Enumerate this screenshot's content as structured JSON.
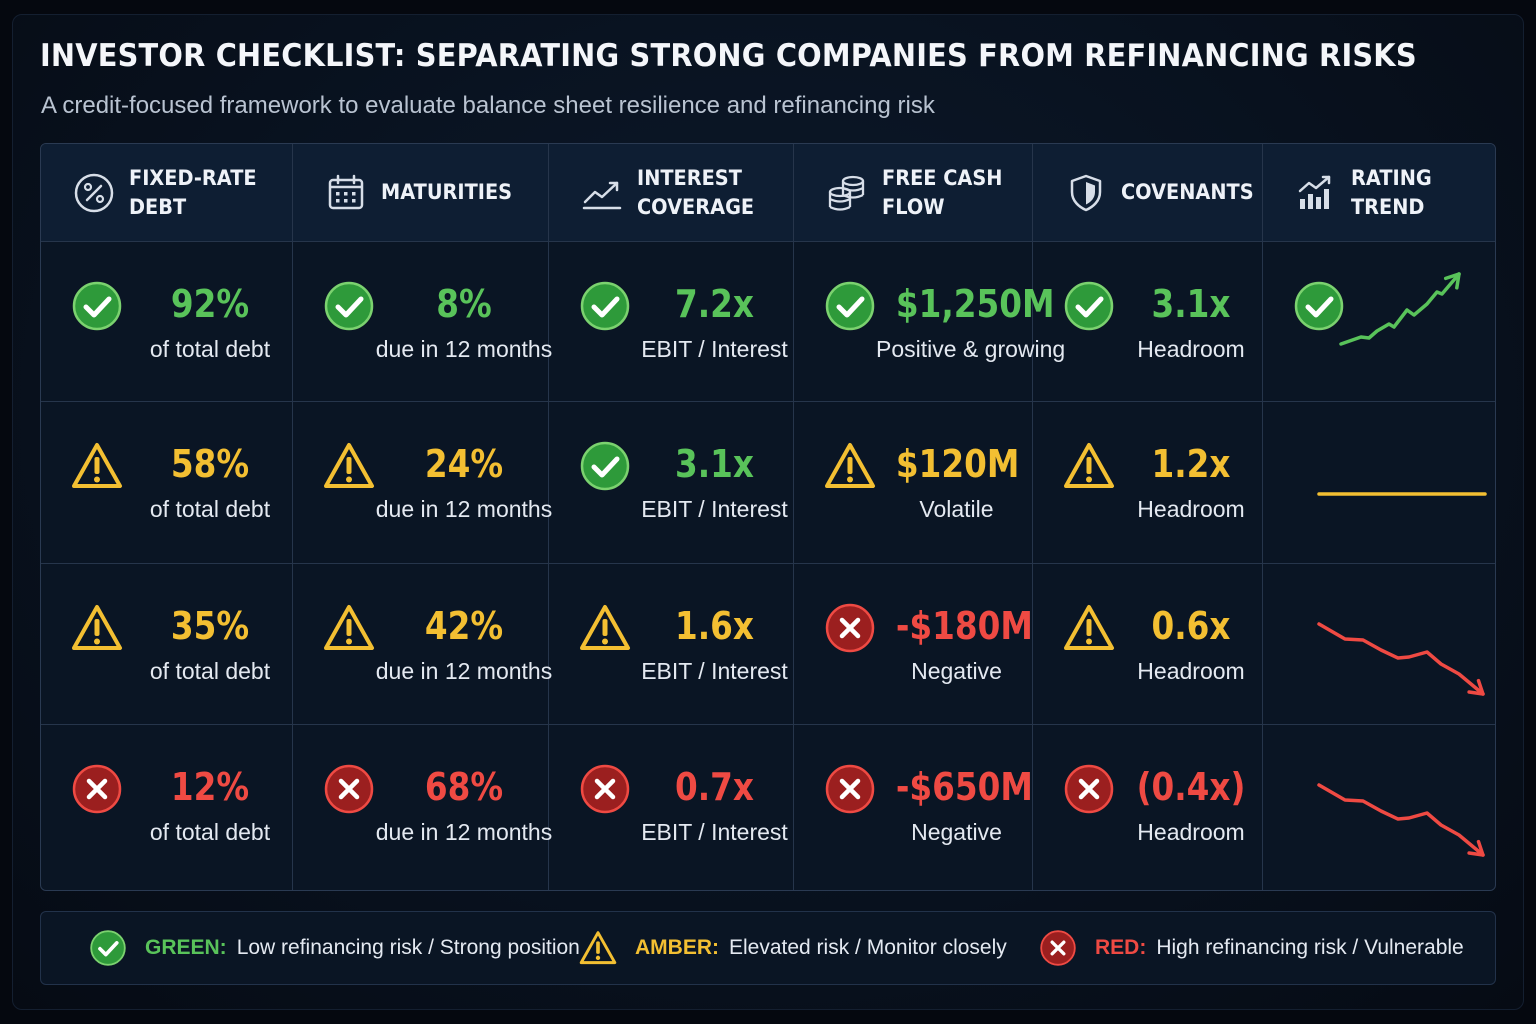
{
  "title": "INVESTOR CHECKLIST: SEPARATING STRONG COMPANIES FROM REFINANCING RISKS",
  "subtitle": "A credit-focused framework to evaluate balance sheet resilience and refinancing risk",
  "colors": {
    "green": "#59c35a",
    "amber": "#f3bf32",
    "red": "#ef4a43"
  },
  "columns": [
    {
      "label": "FIXED-RATE\nDEBT",
      "icon": "percent-icon"
    },
    {
      "label": "MATURITIES",
      "icon": "calendar-icon"
    },
    {
      "label": "INTEREST\nCOVERAGE",
      "icon": "line-chart-icon"
    },
    {
      "label": "FREE CASH\nFLOW",
      "icon": "coins-icon"
    },
    {
      "label": "COVENANTS",
      "icon": "shield-icon"
    },
    {
      "label": "RATING\nTREND",
      "icon": "bar-chart-icon"
    }
  ],
  "rows": [
    {
      "cells": [
        {
          "status": "green",
          "value": "92%",
          "sub": "of total debt"
        },
        {
          "status": "green",
          "value": "8%",
          "sub": "due in 12 months"
        },
        {
          "status": "green",
          "value": "7.2x",
          "sub": "EBIT / Interest"
        },
        {
          "status": "green",
          "value": "$1,250M",
          "sub": "Positive & growing"
        },
        {
          "status": "green",
          "value": "3.1x",
          "sub": "Headroom"
        },
        {
          "status": "green",
          "trend": "up"
        }
      ]
    },
    {
      "cells": [
        {
          "status": "amber",
          "value": "58%",
          "sub": "of total debt"
        },
        {
          "status": "amber",
          "value": "24%",
          "sub": "due in 12 months"
        },
        {
          "status": "green",
          "value": "3.1x",
          "sub": "EBIT / Interest"
        },
        {
          "status": "amber",
          "value": "$120M",
          "sub": "Volatile"
        },
        {
          "status": "amber",
          "value": "1.2x",
          "sub": "Headroom"
        },
        {
          "status": "none",
          "trend": "flat"
        }
      ]
    },
    {
      "cells": [
        {
          "status": "amber",
          "value": "35%",
          "sub": "of total debt"
        },
        {
          "status": "amber",
          "value": "42%",
          "sub": "due in 12 months"
        },
        {
          "status": "amber",
          "value": "1.6x",
          "sub": "EBIT / Interest"
        },
        {
          "status": "red",
          "value": "-$180M",
          "sub": "Negative"
        },
        {
          "status": "amber",
          "value": "0.6x",
          "sub": "Headroom"
        },
        {
          "status": "none",
          "trend": "down"
        }
      ]
    },
    {
      "cells": [
        {
          "status": "red",
          "value": "12%",
          "sub": "of total debt"
        },
        {
          "status": "red",
          "value": "68%",
          "sub": "due in 12 months"
        },
        {
          "status": "red",
          "value": "0.7x",
          "sub": "EBIT / Interest"
        },
        {
          "status": "red",
          "value": "-$650M",
          "sub": "Negative"
        },
        {
          "status": "red",
          "value": "(0.4x)",
          "sub": "Headroom"
        },
        {
          "status": "none",
          "trend": "down"
        }
      ]
    }
  ],
  "legend": [
    {
      "status": "green",
      "key": "GREEN:",
      "text": "Low refinancing risk / Strong position"
    },
    {
      "status": "amber",
      "key": "AMBER:",
      "text": "Elevated risk / Monitor closely"
    },
    {
      "status": "red",
      "key": "RED:",
      "text": "High refinancing risk / Vulnerable"
    }
  ]
}
